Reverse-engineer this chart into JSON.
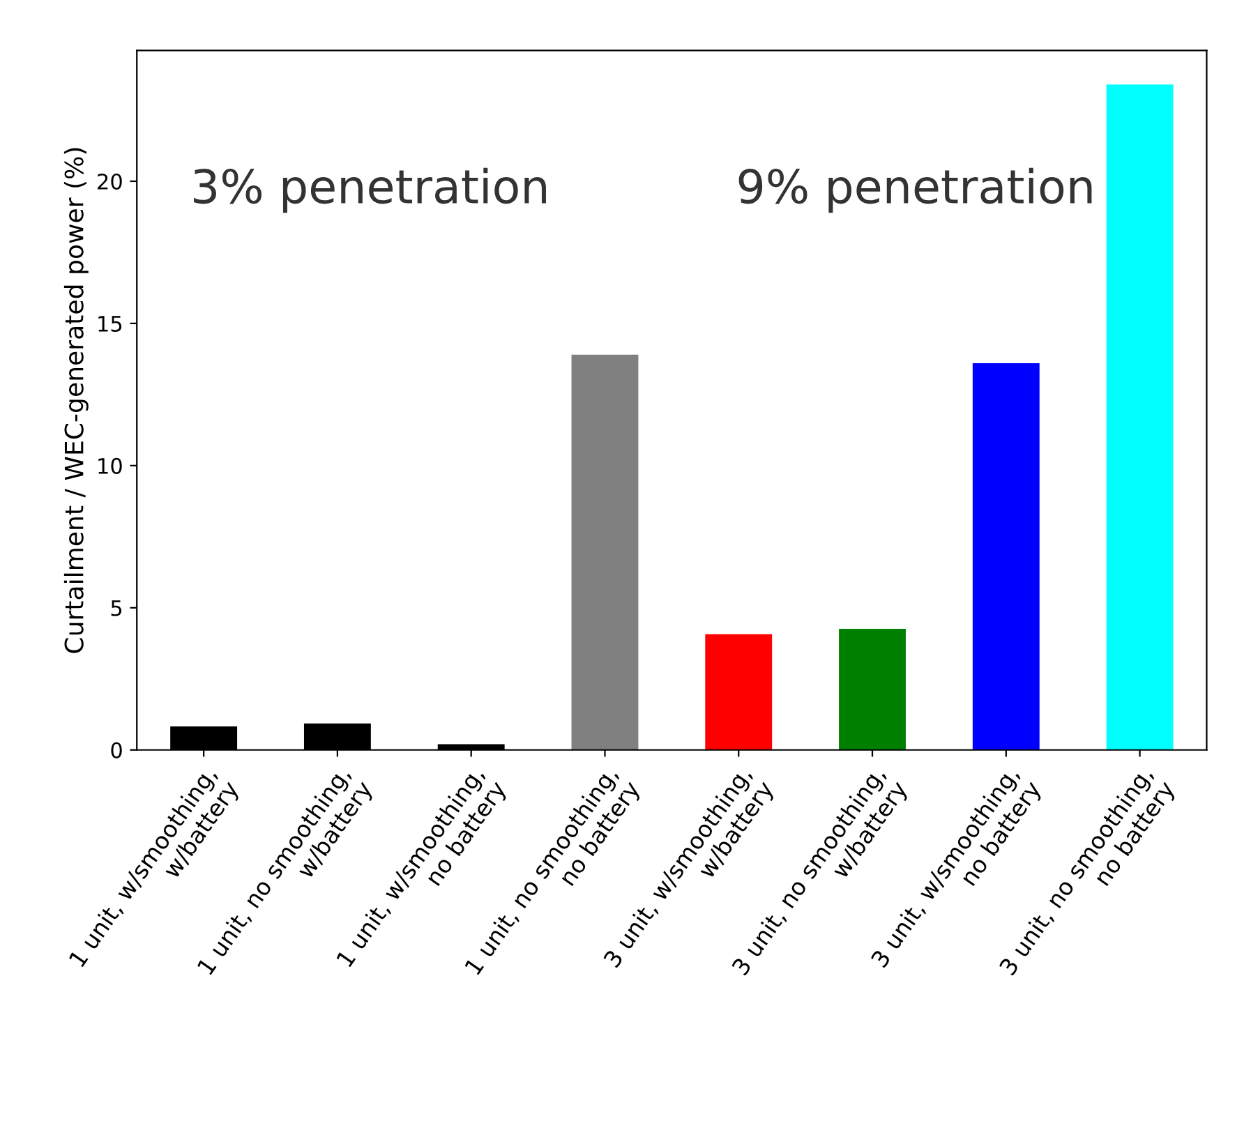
{
  "chart_data": {
    "type": "bar",
    "ylabel": "Curtailment / WEC-generated power (%)",
    "categories": [
      "1 unit, w/smoothing,\nw/battery",
      "1 unit, no smoothing,\nw/battery",
      "1 unit, w/smoothing,\nno battery",
      "1 unit, no smoothing,\nno battery",
      "3 unit, w/smoothing,\nw/battery",
      "3 unit, no smoothing,\nw/battery",
      "3 unit, w/smoothing,\nno battery",
      "3 unit, no smoothing,\nno battery"
    ],
    "values": [
      0.83,
      0.93,
      0.2,
      13.9,
      4.07,
      4.26,
      13.6,
      23.4
    ],
    "colors": [
      "#000000",
      "#000000",
      "#000000",
      "#808080",
      "#ff0000",
      "#008000",
      "#0000ff",
      "#00ffff"
    ],
    "ylim": [
      0,
      24.6
    ],
    "yticks": [
      0,
      5,
      10,
      15,
      20
    ],
    "grid": false,
    "annotations": [
      "3% penetration",
      "9% penetration"
    ]
  }
}
